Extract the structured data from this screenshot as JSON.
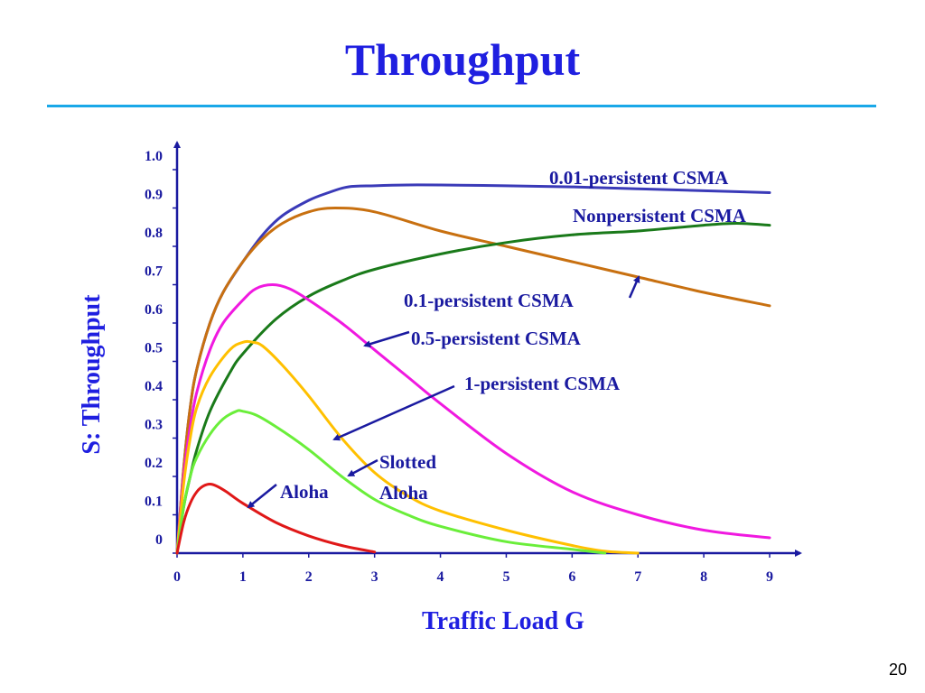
{
  "slide": {
    "title": "Throughput",
    "page_number": "20"
  },
  "colors": {
    "title": "#1f1fe0",
    "rule": "#1aa8e8",
    "axis": "#1a1aa0"
  },
  "chart_data": {
    "type": "line",
    "xlabel": "Traffic Load G",
    "ylabel": "S: Throughput",
    "xlim": [
      0,
      9
    ],
    "ylim": [
      0,
      1.0
    ],
    "x_ticks": [
      "0",
      "1",
      "2",
      "3",
      "4",
      "5",
      "6",
      "7",
      "8",
      "9"
    ],
    "y_ticks": [
      "0",
      "0.1",
      "0.2",
      "0.3",
      "0.4",
      "0.5",
      "0.6",
      "0.7",
      "0.8",
      "0.9",
      "1.0"
    ],
    "grid": false,
    "legend": "none",
    "series": [
      {
        "name": "0.01-persistent CSMA",
        "color": "#3a3ab8",
        "x": [
          0,
          0.1,
          0.2,
          0.3,
          0.5,
          0.7,
          1,
          1.3,
          1.6,
          2,
          2.3,
          2.6,
          3,
          3.5,
          4,
          5,
          6,
          7,
          8,
          9
        ],
        "y": [
          0,
          0.22,
          0.38,
          0.48,
          0.6,
          0.68,
          0.76,
          0.83,
          0.88,
          0.92,
          0.94,
          0.955,
          0.958,
          0.96,
          0.96,
          0.958,
          0.955,
          0.95,
          0.945,
          0.94
        ]
      },
      {
        "name": "Nonpersistent CSMA",
        "color": "#c87010",
        "x": [
          0,
          0.1,
          0.2,
          0.3,
          0.5,
          0.7,
          1,
          1.3,
          1.6,
          2,
          2.4,
          3,
          4,
          5,
          6,
          7,
          8,
          9
        ],
        "y": [
          0,
          0.22,
          0.38,
          0.48,
          0.6,
          0.68,
          0.76,
          0.82,
          0.86,
          0.89,
          0.9,
          0.89,
          0.84,
          0.8,
          0.76,
          0.72,
          0.68,
          0.645
        ]
      },
      {
        "name": "0.1-persistent CSMA",
        "color": "#1a7a1a",
        "x": [
          0,
          0.1,
          0.2,
          0.3,
          0.5,
          0.8,
          1,
          1.5,
          2,
          2.5,
          3,
          4,
          5,
          6,
          7,
          8,
          8.5,
          9
        ],
        "y": [
          0,
          0.12,
          0.2,
          0.27,
          0.37,
          0.47,
          0.52,
          0.61,
          0.67,
          0.71,
          0.74,
          0.78,
          0.81,
          0.83,
          0.84,
          0.855,
          0.86,
          0.855
        ]
      },
      {
        "name": "0.5-persistent CSMA",
        "color": "#f019e0",
        "x": [
          0,
          0.1,
          0.2,
          0.3,
          0.5,
          0.7,
          1,
          1.2,
          1.45,
          1.7,
          2,
          2.5,
          3,
          3.5,
          4,
          5,
          6,
          7,
          8,
          9
        ],
        "y": [
          0,
          0.2,
          0.33,
          0.42,
          0.53,
          0.6,
          0.66,
          0.69,
          0.7,
          0.69,
          0.66,
          0.6,
          0.53,
          0.46,
          0.39,
          0.26,
          0.16,
          0.1,
          0.06,
          0.04
        ]
      },
      {
        "name": "1-persistent CSMA",
        "color": "#ffc000",
        "x": [
          0,
          0.1,
          0.2,
          0.3,
          0.5,
          0.8,
          1,
          1.15,
          1.3,
          1.6,
          2,
          2.5,
          3,
          3.5,
          4,
          5,
          6,
          6.5,
          7
        ],
        "y": [
          0,
          0.18,
          0.3,
          0.38,
          0.46,
          0.53,
          0.55,
          0.55,
          0.54,
          0.49,
          0.41,
          0.3,
          0.21,
          0.15,
          0.11,
          0.06,
          0.02,
          0.005,
          0
        ]
      },
      {
        "name": "Slotted Aloha",
        "color": "#6aee3a",
        "x": [
          0,
          0.1,
          0.2,
          0.3,
          0.5,
          0.7,
          0.9,
          1,
          1.2,
          1.5,
          2,
          2.5,
          3,
          3.5,
          4,
          5,
          6,
          6.5
        ],
        "y": [
          0,
          0.12,
          0.2,
          0.25,
          0.31,
          0.35,
          0.37,
          0.37,
          0.36,
          0.33,
          0.27,
          0.2,
          0.14,
          0.1,
          0.07,
          0.03,
          0.01,
          0
        ]
      },
      {
        "name": "Aloha",
        "color": "#e01818",
        "x": [
          0,
          0.1,
          0.2,
          0.3,
          0.4,
          0.5,
          0.6,
          0.75,
          1,
          1.5,
          2,
          2.5,
          3
        ],
        "y": [
          0,
          0.08,
          0.13,
          0.16,
          0.175,
          0.18,
          0.175,
          0.16,
          0.13,
          0.08,
          0.045,
          0.02,
          0.003
        ]
      }
    ],
    "annotations": [
      {
        "id": "ann-001",
        "lines": [
          "0.01-persistent CSMA"
        ]
      },
      {
        "id": "ann-nonp",
        "lines": [
          "Nonpersistent CSMA"
        ]
      },
      {
        "id": "ann-01",
        "lines": [
          "0.1-persistent CSMA"
        ]
      },
      {
        "id": "ann-05",
        "lines": [
          "0.5-persistent CSMA"
        ]
      },
      {
        "id": "ann-1p",
        "lines": [
          "1-persistent CSMA"
        ]
      },
      {
        "id": "ann-slotted",
        "lines": [
          "Slotted",
          "Aloha"
        ]
      },
      {
        "id": "ann-aloha",
        "lines": [
          "Aloha"
        ]
      }
    ]
  }
}
